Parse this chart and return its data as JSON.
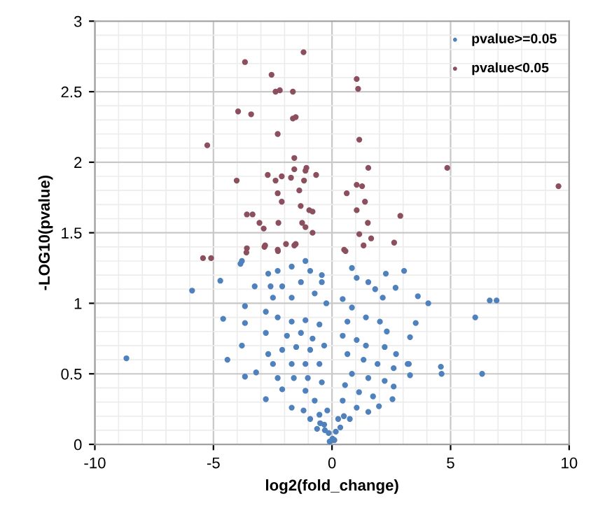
{
  "chart_data": {
    "type": "scatter",
    "xlabel": "log2(fold_change)",
    "ylabel": "-LOG10(pvalue)",
    "xlim": [
      -10,
      10
    ],
    "ylim": [
      0,
      3
    ],
    "xticks": [
      -10,
      -5,
      0,
      5,
      10
    ],
    "yticks": [
      0,
      0.5,
      1,
      1.5,
      2,
      2.5,
      3
    ],
    "grid": true,
    "legend": "top right",
    "marker": "circle",
    "series": [
      {
        "name": "pvalue>=0.05",
        "color": "#4f81bd",
        "x": [
          -8.67,
          -5.9,
          -4.71,
          -4.59,
          -4.41,
          -3.67,
          -3.67,
          -3.8,
          -3.67,
          -3.2,
          -2.79,
          -3.26,
          -3.86,
          -3.8,
          6.65,
          6.94,
          6.04,
          6.33,
          4.59,
          4.62,
          3.62,
          4.06,
          3.53,
          3.04,
          2.68,
          2.27,
          2.14,
          3.29,
          3.24,
          3.29,
          2.55,
          1.98,
          -2.69,
          -2.29,
          -1.7,
          -1.12,
          -0.92,
          -0.43,
          -0.43,
          -1.31,
          -2.1,
          -2.59,
          -2.49,
          -1.7,
          -0.73,
          -0.24,
          -2.79,
          -2.29,
          -1.7,
          -1.12,
          -0.53,
          -2.79,
          -1.9,
          -1.31,
          -0.82,
          -0.33,
          -2.69,
          -2.1,
          -1.51,
          -0.92,
          -2.49,
          -1.7,
          -1.12,
          -0.53,
          -2.29,
          -1.61,
          -1.02,
          -0.43,
          -2.1,
          -1.7,
          -1.12,
          -1.2,
          -0.73,
          -0.53,
          -0.33,
          -0.14,
          0,
          -0.92,
          -0.63,
          -0.2,
          0.45,
          0.84,
          0.84,
          1.04,
          1.53,
          1.82,
          1.43,
          2.02,
          2.31,
          0.65,
          0.45,
          1.04,
          1.43,
          2.22,
          2.7,
          3.19,
          0.65,
          1.33,
          1.92,
          2.6,
          0.84,
          1.53,
          2.22,
          2.6,
          0.55,
          1.14,
          1.73,
          0.45,
          1.04,
          1.53,
          0.26,
          0.75,
          0.16,
          0.02,
          -0.1,
          0.1,
          -0.3,
          0.35,
          -0.5,
          0.5
        ],
        "values": [
          0.61,
          1.09,
          1.16,
          0.89,
          0.6,
          0.98,
          0.86,
          0.7,
          0.48,
          0.51,
          0.32,
          1.12,
          1.28,
          1.3,
          1.02,
          1.02,
          0.9,
          0.5,
          0.55,
          0.5,
          1.05,
          1.0,
          0.86,
          1.23,
          1.11,
          1.21,
          1.04,
          0.76,
          0.57,
          0.49,
          0.32,
          0.27,
          1.21,
          1.23,
          1.26,
          1.3,
          1.23,
          1.2,
          1.15,
          1.15,
          1.12,
          1.12,
          1.04,
          1.04,
          1.07,
          1.0,
          0.94,
          0.9,
          0.87,
          0.88,
          0.85,
          0.79,
          0.77,
          0.79,
          0.75,
          0.7,
          0.64,
          0.67,
          0.69,
          0.67,
          0.57,
          0.57,
          0.57,
          0.57,
          0.47,
          0.47,
          0.47,
          0.44,
          0.39,
          0.26,
          0.38,
          0.24,
          0.31,
          0.21,
          0.14,
          0.08,
          0.03,
          0.18,
          0.11,
          0.24,
          1.03,
          0.97,
          1.25,
          1.18,
          1.15,
          1.1,
          0.9,
          0.87,
          0.8,
          0.87,
          0.77,
          0.74,
          0.7,
          0.69,
          0.64,
          0.57,
          0.64,
          0.6,
          0.57,
          0.54,
          0.5,
          0.47,
          0.45,
          0.41,
          0.42,
          0.37,
          0.34,
          0.31,
          0.26,
          0.23,
          0.18,
          0.18,
          0.09,
          0.04,
          0.02,
          0.03,
          0.1,
          0.12,
          0.15,
          0.2
        ]
      },
      {
        "name": "pvalue<0.05",
        "color": "#8c4f5e",
        "x": [
          -1.2,
          -3.67,
          -2.55,
          -2.38,
          -2.2,
          -1.65,
          1.04,
          1.1,
          -3.96,
          -3.41,
          -1.65,
          -1.53,
          -2.29,
          -5.26,
          1.15,
          -1.59,
          4.86,
          1.53,
          -1.59,
          -1.08,
          -1.12,
          -0.67,
          -2.71,
          -2.12,
          -2.38,
          -1.73,
          -1.18,
          -4.02,
          1.04,
          1.27,
          0.62,
          -2.29,
          -1.38,
          1.39,
          -2.12,
          -1.32,
          -0.96,
          -0.82,
          1.04,
          -3.59,
          -3.35,
          2.88,
          -3.06,
          -2.26,
          -1.26,
          -1.12,
          1.51,
          -2.88,
          -0.82,
          1.15,
          1.65,
          2.62,
          -3.59,
          -2.82,
          -1.94,
          -1.59,
          -1.53,
          -2.29,
          1.33,
          0.51,
          -5.44,
          -5.1,
          -3.61,
          -2.28,
          -2.85,
          0.57,
          9.55
        ],
        "values": [
          2.78,
          2.71,
          2.62,
          2.5,
          2.51,
          2.5,
          2.59,
          2.52,
          2.36,
          2.34,
          2.31,
          2.32,
          2.2,
          2.12,
          2.16,
          2.03,
          1.96,
          1.96,
          1.95,
          1.96,
          1.94,
          1.91,
          1.91,
          1.9,
          1.87,
          1.89,
          1.87,
          1.87,
          1.84,
          1.83,
          1.78,
          1.78,
          1.8,
          1.72,
          1.72,
          1.69,
          1.66,
          1.65,
          1.66,
          1.63,
          1.63,
          1.62,
          1.57,
          1.57,
          1.57,
          1.54,
          1.57,
          1.53,
          1.5,
          1.49,
          1.46,
          1.43,
          1.39,
          1.41,
          1.42,
          1.41,
          1.42,
          1.38,
          1.41,
          1.38,
          1.32,
          1.32,
          1.36,
          1.37,
          1.4,
          1.37,
          1.83
        ]
      }
    ]
  }
}
